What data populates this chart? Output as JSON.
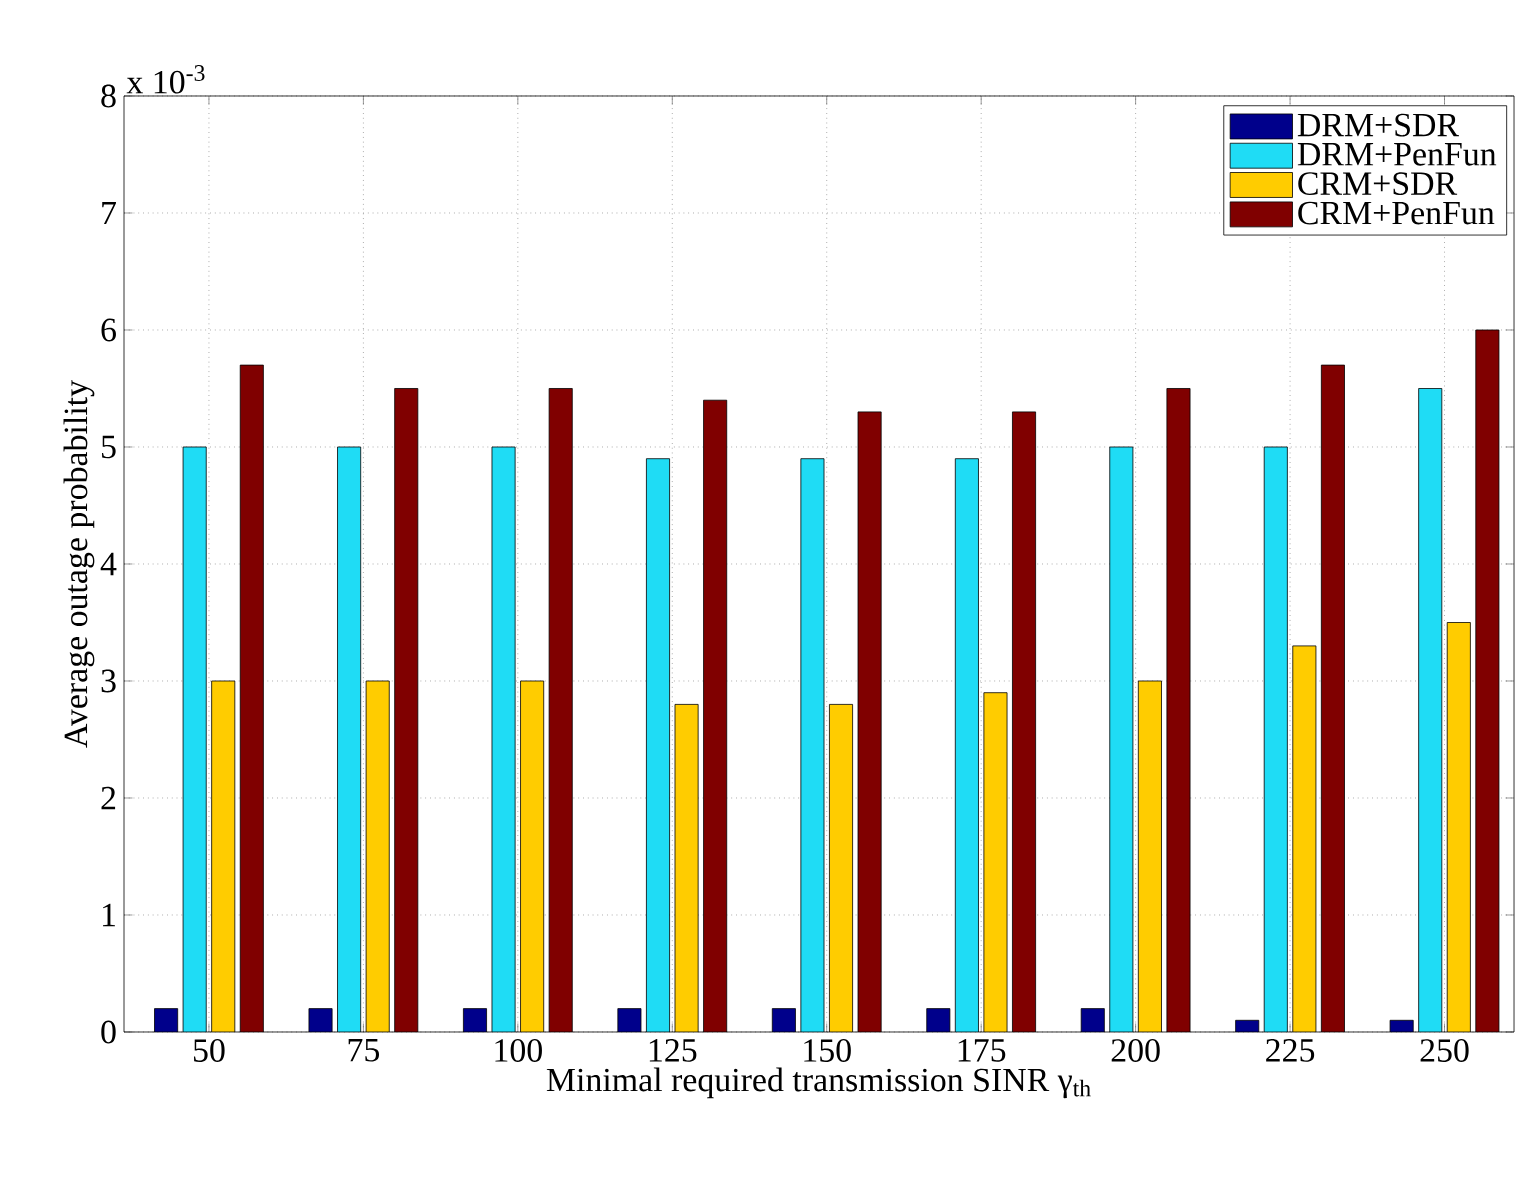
{
  "chart_data": {
    "type": "bar",
    "xlabel": "Minimal required transmission SINR γ$_{th}$",
    "ylabel": "Average outage probability",
    "annotations": [
      "x 10$^{-3}$"
    ],
    "categories": [
      "50",
      "75",
      "100",
      "125",
      "150",
      "175",
      "200",
      "225",
      "250"
    ],
    "series": [
      {
        "name": "DRM+SDR",
        "color": "#00008b",
        "values": [
          0.2,
          0.2,
          0.2,
          0.2,
          0.2,
          0.2,
          0.2,
          0.1,
          0.1
        ]
      },
      {
        "name": "DRM+PenFun",
        "color": "#1fdcf5",
        "values": [
          5.0,
          5.0,
          5.0,
          4.9,
          4.9,
          4.9,
          5.0,
          5.0,
          5.5
        ]
      },
      {
        "name": "CRM+SDR",
        "color": "#ffcc00",
        "values": [
          3.0,
          3.0,
          3.0,
          2.8,
          2.8,
          2.9,
          3.0,
          3.3,
          3.5
        ]
      },
      {
        "name": "CRM+PenFun",
        "color": "#800000",
        "values": [
          5.7,
          5.5,
          5.5,
          5.4,
          5.3,
          5.3,
          5.5,
          5.7,
          6.0
        ]
      }
    ],
    "ylim": [
      0,
      8
    ],
    "yticks": [
      0,
      1,
      2,
      3,
      4,
      5,
      6,
      7,
      8
    ],
    "grid": true,
    "legend": "top right"
  }
}
